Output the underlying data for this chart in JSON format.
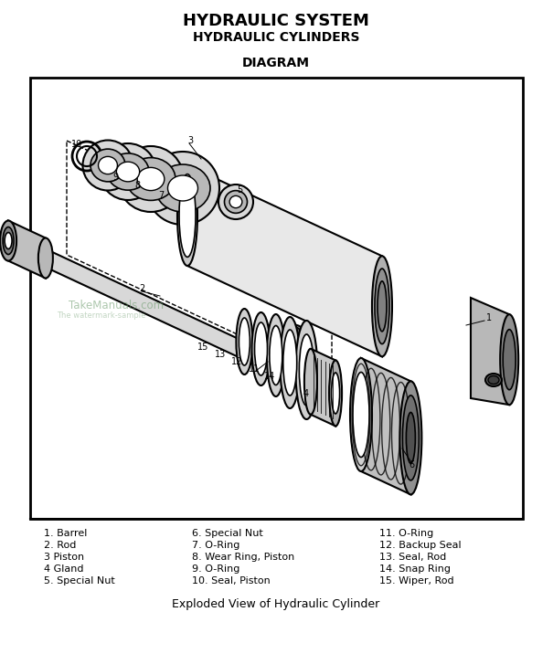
{
  "title_line1": "HYDRAULIC SYSTEM",
  "title_line2": "HYDRAULIC CYLINDERS",
  "subtitle": "DIAGRAM",
  "bg_color": "#ffffff",
  "parts_list_col1": [
    "1. Barrel",
    "2. Rod",
    "3 Piston",
    "4 Gland",
    "5. Special Nut"
  ],
  "parts_list_col2": [
    "6. Special Nut",
    "7. O-Ring",
    "8. Wear Ring, Piston",
    "9. O-Ring",
    "10. Seal, Piston"
  ],
  "parts_list_col3": [
    "11. O-Ring",
    "12. Backup Seal",
    "13. Seal, Rod",
    "14. Snap Ring",
    "15. Wiper, Rod"
  ],
  "caption": "Exploded View of Hydraulic Cylinder",
  "watermark1": "TakeManuals.com",
  "watermark2": "The watermark-sample",
  "title_fs": 13,
  "sub_fs": 10,
  "list_fs": 8,
  "cap_fs": 9
}
